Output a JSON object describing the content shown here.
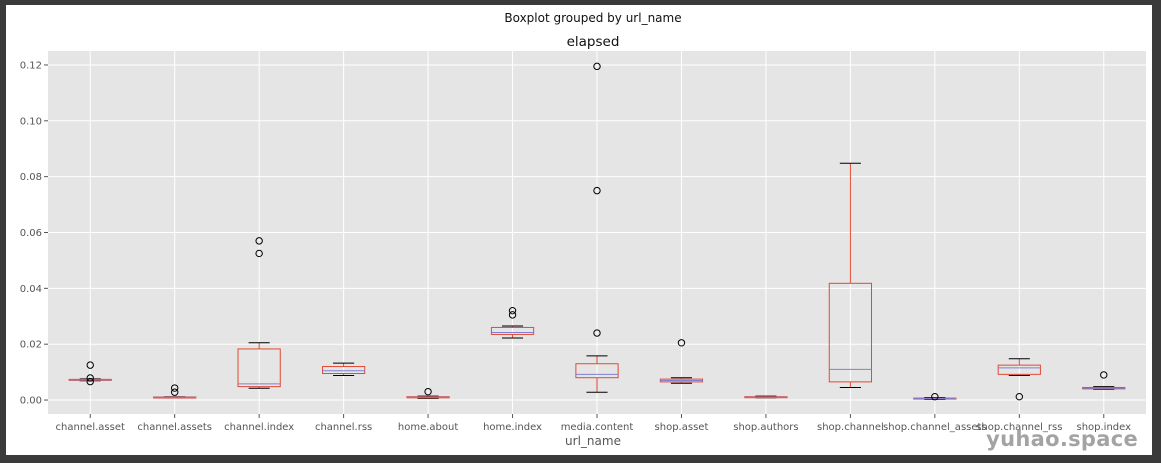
{
  "chart_data": {
    "type": "boxplot",
    "suptitle": "Boxplot grouped by url_name",
    "title": "elapsed",
    "xlabel": "url_name",
    "ylabel": "",
    "ylim": [
      -0.005,
      0.125
    ],
    "yticks": [
      0.0,
      0.02,
      0.04,
      0.06,
      0.08,
      0.1,
      0.12
    ],
    "ytick_labels": [
      "0.00",
      "0.02",
      "0.04",
      "0.06",
      "0.08",
      "0.10",
      "0.12"
    ],
    "grid": true,
    "style": "ggplot",
    "colors": {
      "plot_bg": "#E5E5E5",
      "grid": "#FFFFFF",
      "box": "#E24A33",
      "median": "#8EBA42",
      "whisker": "#E24A33",
      "flier": "#000000"
    },
    "categories": [
      "channel.asset",
      "channel.assets",
      "channel.index",
      "channel.rss",
      "home.about",
      "home.index",
      "media.content",
      "shop.asset",
      "shop.authors",
      "shop.channel",
      "shop.channel_assets",
      "shop.channel_rss",
      "shop.index"
    ],
    "boxes": [
      {
        "category": "channel.asset",
        "whislo": 0.0069,
        "q1": 0.0071,
        "med": 0.0072,
        "q3": 0.0074,
        "whishi": 0.0076,
        "fliers": [
          0.0125,
          0.0079,
          0.0066
        ]
      },
      {
        "category": "channel.assets",
        "whislo": 0.0008,
        "q1": 0.0009,
        "med": 0.001,
        "q3": 0.0011,
        "whishi": 0.0012,
        "fliers": [
          0.0043,
          0.0028
        ]
      },
      {
        "category": "channel.index",
        "whislo": 0.0042,
        "q1": 0.0048,
        "med": 0.0058,
        "q3": 0.0183,
        "whishi": 0.0205,
        "fliers": [
          0.057,
          0.0525
        ]
      },
      {
        "category": "channel.rss",
        "whislo": 0.0088,
        "q1": 0.0095,
        "med": 0.0105,
        "q3": 0.012,
        "whishi": 0.0132,
        "fliers": []
      },
      {
        "category": "home.about",
        "whislo": 0.0006,
        "q1": 0.0008,
        "med": 0.001,
        "q3": 0.0012,
        "whishi": 0.0014,
        "fliers": [
          0.003
        ]
      },
      {
        "category": "home.index",
        "whislo": 0.0222,
        "q1": 0.0235,
        "med": 0.0242,
        "q3": 0.026,
        "whishi": 0.0265,
        "fliers": [
          0.032,
          0.0305
        ]
      },
      {
        "category": "media.content",
        "whislo": 0.0028,
        "q1": 0.008,
        "med": 0.0092,
        "q3": 0.013,
        "whishi": 0.0158,
        "fliers": [
          0.1195,
          0.075,
          0.024
        ]
      },
      {
        "category": "shop.asset",
        "whislo": 0.006,
        "q1": 0.0065,
        "med": 0.007,
        "q3": 0.0075,
        "whishi": 0.008,
        "fliers": [
          0.0205
        ]
      },
      {
        "category": "shop.authors",
        "whislo": 0.0008,
        "q1": 0.0009,
        "med": 0.001,
        "q3": 0.0012,
        "whishi": 0.0014,
        "fliers": []
      },
      {
        "category": "shop.channel",
        "whislo": 0.0045,
        "q1": 0.0065,
        "med": 0.011,
        "q3": 0.0418,
        "whishi": 0.0848,
        "fliers": []
      },
      {
        "category": "shop.channel_assets",
        "whislo": 0.0002,
        "q1": 0.0004,
        "med": 0.0005,
        "q3": 0.0007,
        "whishi": 0.0009,
        "fliers": [
          0.0012
        ]
      },
      {
        "category": "shop.channel_rss",
        "whislo": 0.0088,
        "q1": 0.0092,
        "med": 0.0115,
        "q3": 0.0125,
        "whishi": 0.0148,
        "fliers": [
          0.0012
        ]
      },
      {
        "category": "shop.index",
        "whislo": 0.0038,
        "q1": 0.004,
        "med": 0.0042,
        "q3": 0.0045,
        "whishi": 0.0048,
        "fliers": [
          0.009
        ]
      }
    ]
  },
  "watermark": "yuhao.space"
}
